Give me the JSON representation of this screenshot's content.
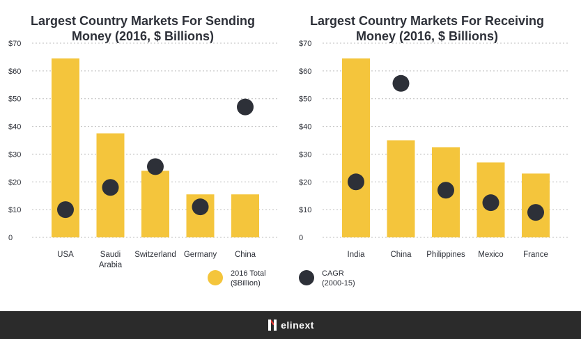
{
  "colors": {
    "bar": "#f4c53c",
    "dot": "#2d3038",
    "grid": "#bdbdbd",
    "text": "#2d3038",
    "footer": "#2b2b2b",
    "brand_accent": "#e53935"
  },
  "chart_data": [
    {
      "type": "bar",
      "title_lines": [
        "Largest Country Markets For Sending",
        "Money (2016, $ Billions)"
      ],
      "categories": [
        [
          "USA"
        ],
        [
          "Saudi",
          "Arabia"
        ],
        [
          "Switzerland"
        ],
        [
          "Germany"
        ],
        [
          "China"
        ]
      ],
      "ylim": [
        0,
        70
      ],
      "yticks": [
        0,
        10,
        20,
        30,
        40,
        50,
        60,
        70
      ],
      "ytick_labels": [
        "0",
        "$10",
        "$20",
        "$30",
        "$40",
        "$50",
        "$60",
        "$70"
      ],
      "grid": true,
      "series": [
        {
          "name": "2016 Total ($Billion)",
          "type": "bar",
          "values": [
            64.5,
            37.5,
            24,
            15.5,
            15.5
          ]
        },
        {
          "name": "CAGR (2000-15)",
          "type": "scatter",
          "values": [
            10,
            18,
            25.5,
            11,
            47
          ]
        }
      ]
    },
    {
      "type": "bar",
      "title_lines": [
        "Largest Country Markets For Receiving",
        "Money (2016, $ Billions)"
      ],
      "categories": [
        [
          "India"
        ],
        [
          "China"
        ],
        [
          "Philippines"
        ],
        [
          "Mexico"
        ],
        [
          "France"
        ]
      ],
      "ylim": [
        0,
        70
      ],
      "yticks": [
        0,
        10,
        20,
        30,
        40,
        50,
        60,
        70
      ],
      "ytick_labels": [
        "0",
        "$10",
        "$20",
        "$30",
        "$40",
        "$50",
        "$60",
        "$70"
      ],
      "grid": true,
      "series": [
        {
          "name": "2016 Total ($Billion)",
          "type": "bar",
          "values": [
            64.5,
            35,
            32.5,
            27,
            23
          ]
        },
        {
          "name": "CAGR (2000-15)",
          "type": "scatter",
          "values": [
            20,
            55.5,
            17,
            12.5,
            9
          ]
        }
      ]
    }
  ],
  "legend": [
    {
      "label_lines": [
        "2016 Total",
        "($Billion)"
      ],
      "kind": "bar"
    },
    {
      "label_lines": [
        "CAGR",
        "(2000-15)"
      ],
      "kind": "dot"
    }
  ],
  "footer": {
    "brand": "elinext",
    "icon": "elinext-logo-icon"
  }
}
